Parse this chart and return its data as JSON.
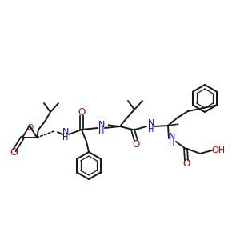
{
  "bg_color": "#ffffff",
  "black": "#1a1a1a",
  "red": "#cc0000",
  "blue": "#0000cc",
  "figsize": [
    3.0,
    3.0
  ],
  "dpi": 100,
  "xlim": [
    0,
    300
  ],
  "ylim": [
    0,
    300
  ]
}
